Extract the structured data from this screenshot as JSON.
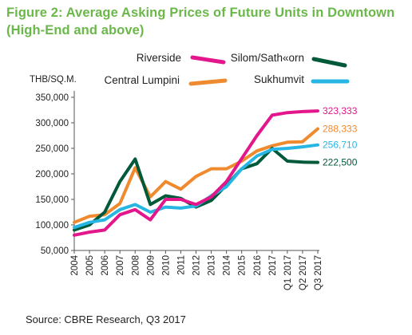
{
  "figure": {
    "title": "Figure 2: Average Asking Prices of Future Units in Downtown (High-End and above)",
    "source": "Source: CBRE Research, Q3 2017"
  },
  "chart_data": {
    "type": "line",
    "ylabel": "THB/SQ.M.",
    "ylim": [
      50000,
      350000
    ],
    "yticks": [
      "50,000",
      "100,000",
      "150,000",
      "200,000",
      "250,000",
      "300,000",
      "350,000"
    ],
    "grid": false,
    "legend_position": "top",
    "categories": [
      "2004",
      "2005",
      "2006",
      "2007",
      "2008",
      "2009",
      "2010",
      "2011",
      "2012",
      "2013",
      "2014",
      "2015",
      "2016",
      "2017",
      "Q1 2017",
      "Q2 2017",
      "Q3 2017"
    ],
    "series": [
      {
        "name": "Riverside",
        "color": "#E3168B",
        "values": [
          80000,
          86000,
          90000,
          120000,
          130000,
          110000,
          150000,
          150000,
          140000,
          155000,
          185000,
          230000,
          275000,
          315000,
          320000,
          322000,
          323333
        ],
        "end_label": "323,333"
      },
      {
        "name": "Central Lumpini",
        "color": "#F08A2E",
        "values": [
          105000,
          117000,
          120000,
          142000,
          212000,
          155000,
          185000,
          170000,
          195000,
          210000,
          210000,
          225000,
          245000,
          255000,
          262000,
          263000,
          288333
        ],
        "end_label": "288,333"
      },
      {
        "name": "Silom/Sathorn",
        "legend_label": "Silom/Sath«orn",
        "color": "#005A3A",
        "values": [
          90000,
          100000,
          125000,
          185000,
          229000,
          140000,
          157000,
          152000,
          135000,
          148000,
          178000,
          210000,
          220000,
          250000,
          225000,
          223000,
          222500
        ],
        "end_label": "222,500"
      },
      {
        "name": "Sukhumvit",
        "color": "#27B6E3",
        "values": [
          95000,
          105000,
          110000,
          130000,
          140000,
          125000,
          135000,
          133000,
          137000,
          157000,
          175000,
          210000,
          235000,
          248000,
          250000,
          253000,
          256710
        ],
        "end_label": "256,710"
      }
    ]
  }
}
